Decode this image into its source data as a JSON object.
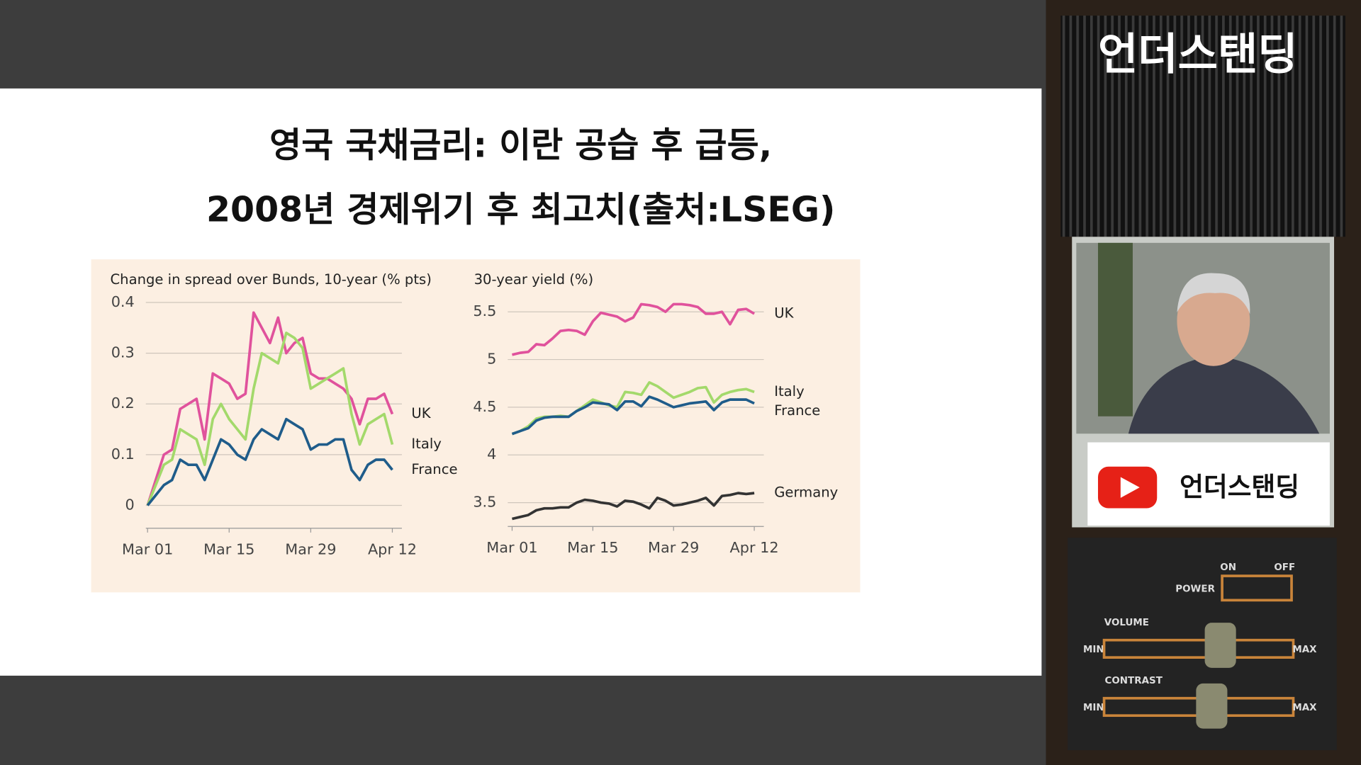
{
  "header": {
    "title_line1": "영국 국채금리: 이란 공습 후 급등,",
    "title_line2": "2008년 경제위기 후 최고치(출처:LSEG)"
  },
  "chart_data": [
    {
      "type": "line",
      "title": "Change in spread over Bunds, 10-year (% pts)",
      "categories": [
        "Mar 01",
        null,
        null,
        null,
        null,
        null,
        null,
        null,
        null,
        null,
        "Mar 15",
        null,
        null,
        null,
        null,
        null,
        null,
        null,
        null,
        null,
        "Mar 29",
        null,
        null,
        null,
        null,
        null,
        null,
        null,
        null,
        null,
        "Apr 12"
      ],
      "ylim": [
        -0.045,
        0.42
      ],
      "yticks": [
        0,
        0.1,
        0.2,
        0.3,
        0.4
      ],
      "grid": true,
      "series": [
        {
          "name": "UK",
          "color": "#e0529c",
          "values": [
            0.0,
            0.05,
            0.1,
            0.11,
            0.19,
            0.2,
            0.21,
            0.13,
            0.26,
            0.25,
            0.24,
            0.21,
            0.22,
            0.38,
            0.35,
            0.32,
            0.37,
            0.3,
            0.32,
            0.33,
            0.26,
            0.25,
            0.25,
            0.24,
            0.23,
            0.21,
            0.16,
            0.21,
            0.21,
            0.22,
            0.18
          ]
        },
        {
          "name": "Italy",
          "color": "#a3d96b",
          "values": [
            0.0,
            0.04,
            0.08,
            0.09,
            0.15,
            0.14,
            0.13,
            0.08,
            0.17,
            0.2,
            0.17,
            0.15,
            0.13,
            0.23,
            0.3,
            0.29,
            0.28,
            0.34,
            0.33,
            0.31,
            0.23,
            0.24,
            0.25,
            0.26,
            0.27,
            0.18,
            0.12,
            0.16,
            0.17,
            0.18,
            0.12
          ]
        },
        {
          "name": "France",
          "color": "#1f5c8a",
          "values": [
            0.0,
            0.02,
            0.04,
            0.05,
            0.09,
            0.08,
            0.08,
            0.05,
            0.09,
            0.13,
            0.12,
            0.1,
            0.09,
            0.13,
            0.15,
            0.14,
            0.13,
            0.17,
            0.16,
            0.15,
            0.11,
            0.12,
            0.12,
            0.13,
            0.13,
            0.07,
            0.05,
            0.08,
            0.09,
            0.09,
            0.07
          ]
        }
      ]
    },
    {
      "type": "line",
      "title": "30-year yield (%)",
      "categories": [
        "Mar 01",
        null,
        null,
        null,
        null,
        null,
        null,
        null,
        null,
        null,
        "Mar 15",
        null,
        null,
        null,
        null,
        null,
        null,
        null,
        null,
        null,
        "Mar 29",
        null,
        null,
        null,
        null,
        null,
        null,
        null,
        null,
        null,
        "Apr 12"
      ],
      "ylim": [
        3.25,
        5.65
      ],
      "yticks": [
        3.5,
        4,
        4.5,
        5,
        5.5
      ],
      "grid": true,
      "series": [
        {
          "name": "UK",
          "color": "#e0529c",
          "values": [
            5.05,
            5.07,
            5.08,
            5.16,
            5.15,
            5.22,
            5.3,
            5.31,
            5.3,
            5.26,
            5.4,
            5.49,
            5.47,
            5.45,
            5.4,
            5.44,
            5.58,
            5.57,
            5.55,
            5.5,
            5.58,
            5.58,
            5.57,
            5.55,
            5.48,
            5.48,
            5.5,
            5.37,
            5.52,
            5.53,
            5.48
          ]
        },
        {
          "name": "Italy",
          "color": "#a3d96b",
          "values": [
            4.22,
            4.25,
            4.3,
            4.38,
            4.4,
            4.4,
            4.41,
            4.4,
            4.46,
            4.52,
            4.58,
            4.55,
            4.52,
            4.5,
            4.66,
            4.65,
            4.63,
            4.76,
            4.72,
            4.66,
            4.6,
            4.63,
            4.66,
            4.7,
            4.71,
            4.55,
            4.63,
            4.66,
            4.68,
            4.69,
            4.66
          ]
        },
        {
          "name": "France",
          "color": "#1f5c8a",
          "values": [
            4.22,
            4.25,
            4.28,
            4.36,
            4.39,
            4.4,
            4.4,
            4.4,
            4.46,
            4.5,
            4.55,
            4.54,
            4.53,
            4.47,
            4.56,
            4.56,
            4.51,
            4.61,
            4.58,
            4.54,
            4.5,
            4.52,
            4.54,
            4.55,
            4.56,
            4.47,
            4.55,
            4.58,
            4.58,
            4.58,
            4.54
          ]
        },
        {
          "name": "Germany",
          "color": "#333333",
          "values": [
            3.33,
            3.35,
            3.37,
            3.42,
            3.44,
            3.44,
            3.45,
            3.45,
            3.5,
            3.53,
            3.52,
            3.5,
            3.49,
            3.46,
            3.52,
            3.51,
            3.48,
            3.44,
            3.55,
            3.52,
            3.47,
            3.48,
            3.5,
            3.52,
            3.55,
            3.47,
            3.57,
            3.58,
            3.6,
            3.59,
            3.6
          ]
        }
      ]
    }
  ],
  "sidebar": {
    "channel": "언더스탠딩",
    "badge": "언더스탠딩",
    "controls": {
      "power": "POWER",
      "on": "ON",
      "off": "OFF",
      "volume": "VOLUME",
      "contrast": "CONTRAST",
      "min": "MIN",
      "max": "MAX"
    }
  }
}
